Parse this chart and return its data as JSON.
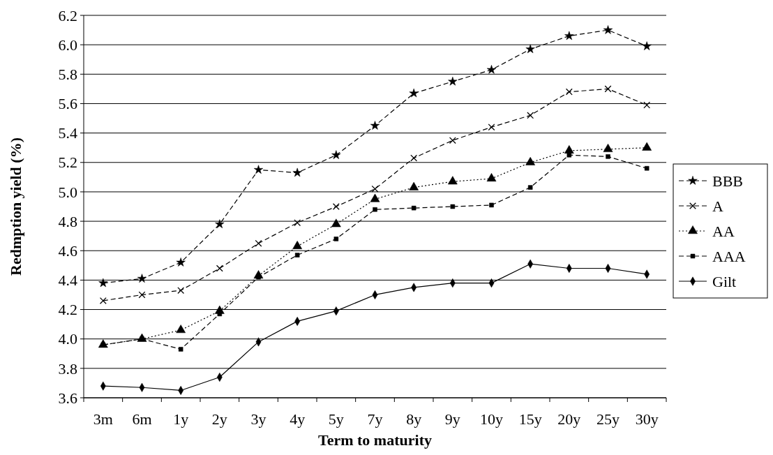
{
  "chart_data": {
    "type": "line",
    "xlabel": "Term to maturity",
    "ylabel": "Redmption yield (%)",
    "categories": [
      "3m",
      "6m",
      "1y",
      "2y",
      "3y",
      "4y",
      "5y",
      "7y",
      "8y",
      "9y",
      "10y",
      "15y",
      "20y",
      "25y",
      "30y"
    ],
    "ylim": [
      3.6,
      6.2
    ],
    "yticks": [
      {
        "value": 3.6,
        "label": "3.6"
      },
      {
        "value": 3.8,
        "label": "3.8"
      },
      {
        "value": 4.0,
        "label": "4.0"
      },
      {
        "value": 4.2,
        "label": "4.2"
      },
      {
        "value": 4.4,
        "label": "4.4"
      },
      {
        "value": 4.6,
        "label": "4.6"
      },
      {
        "value": 4.8,
        "label": "4.8"
      },
      {
        "value": 5.0,
        "label": "5.0"
      },
      {
        "value": 5.2,
        "label": "5.2"
      },
      {
        "value": 5.4,
        "label": "5.4"
      },
      {
        "value": 5.6,
        "label": "5.6"
      },
      {
        "value": 5.8,
        "label": "5.8"
      },
      {
        "value": 6.0,
        "label": "6.0"
      },
      {
        "value": 6.2,
        "label": "6.2"
      }
    ],
    "grid": "y",
    "legend": "right",
    "series": [
      {
        "name": "BBB",
        "color": "#000000",
        "marker": "star",
        "line_style": "dashed",
        "values": [
          4.38,
          4.41,
          4.52,
          4.78,
          5.15,
          5.13,
          5.25,
          5.45,
          5.67,
          5.75,
          5.83,
          5.97,
          6.06,
          6.1,
          5.99
        ]
      },
      {
        "name": "A",
        "color": "#000000",
        "marker": "cross",
        "line_style": "dashed",
        "values": [
          4.26,
          4.3,
          4.33,
          4.48,
          4.65,
          4.79,
          4.9,
          5.02,
          5.23,
          5.35,
          5.44,
          5.52,
          5.68,
          5.7,
          5.59
        ]
      },
      {
        "name": "AA",
        "color": "#000000",
        "marker": "triangle",
        "line_style": "dotted",
        "values": [
          3.96,
          4.0,
          4.06,
          4.19,
          4.43,
          4.63,
          4.78,
          4.95,
          5.03,
          5.07,
          5.09,
          5.2,
          5.28,
          5.29,
          5.3
        ]
      },
      {
        "name": "AAA",
        "color": "#000000",
        "marker": "square",
        "line_style": "dashed",
        "values": [
          3.96,
          4.0,
          3.93,
          4.17,
          4.42,
          4.57,
          4.68,
          4.88,
          4.89,
          4.9,
          4.91,
          5.03,
          5.25,
          5.24,
          5.16
        ]
      },
      {
        "name": "Gilt",
        "color": "#000000",
        "marker": "diamond",
        "line_style": "solid",
        "values": [
          3.68,
          3.67,
          3.65,
          3.74,
          3.98,
          4.12,
          4.19,
          4.3,
          4.35,
          4.38,
          4.38,
          4.51,
          4.48,
          4.48,
          4.44
        ]
      }
    ]
  }
}
